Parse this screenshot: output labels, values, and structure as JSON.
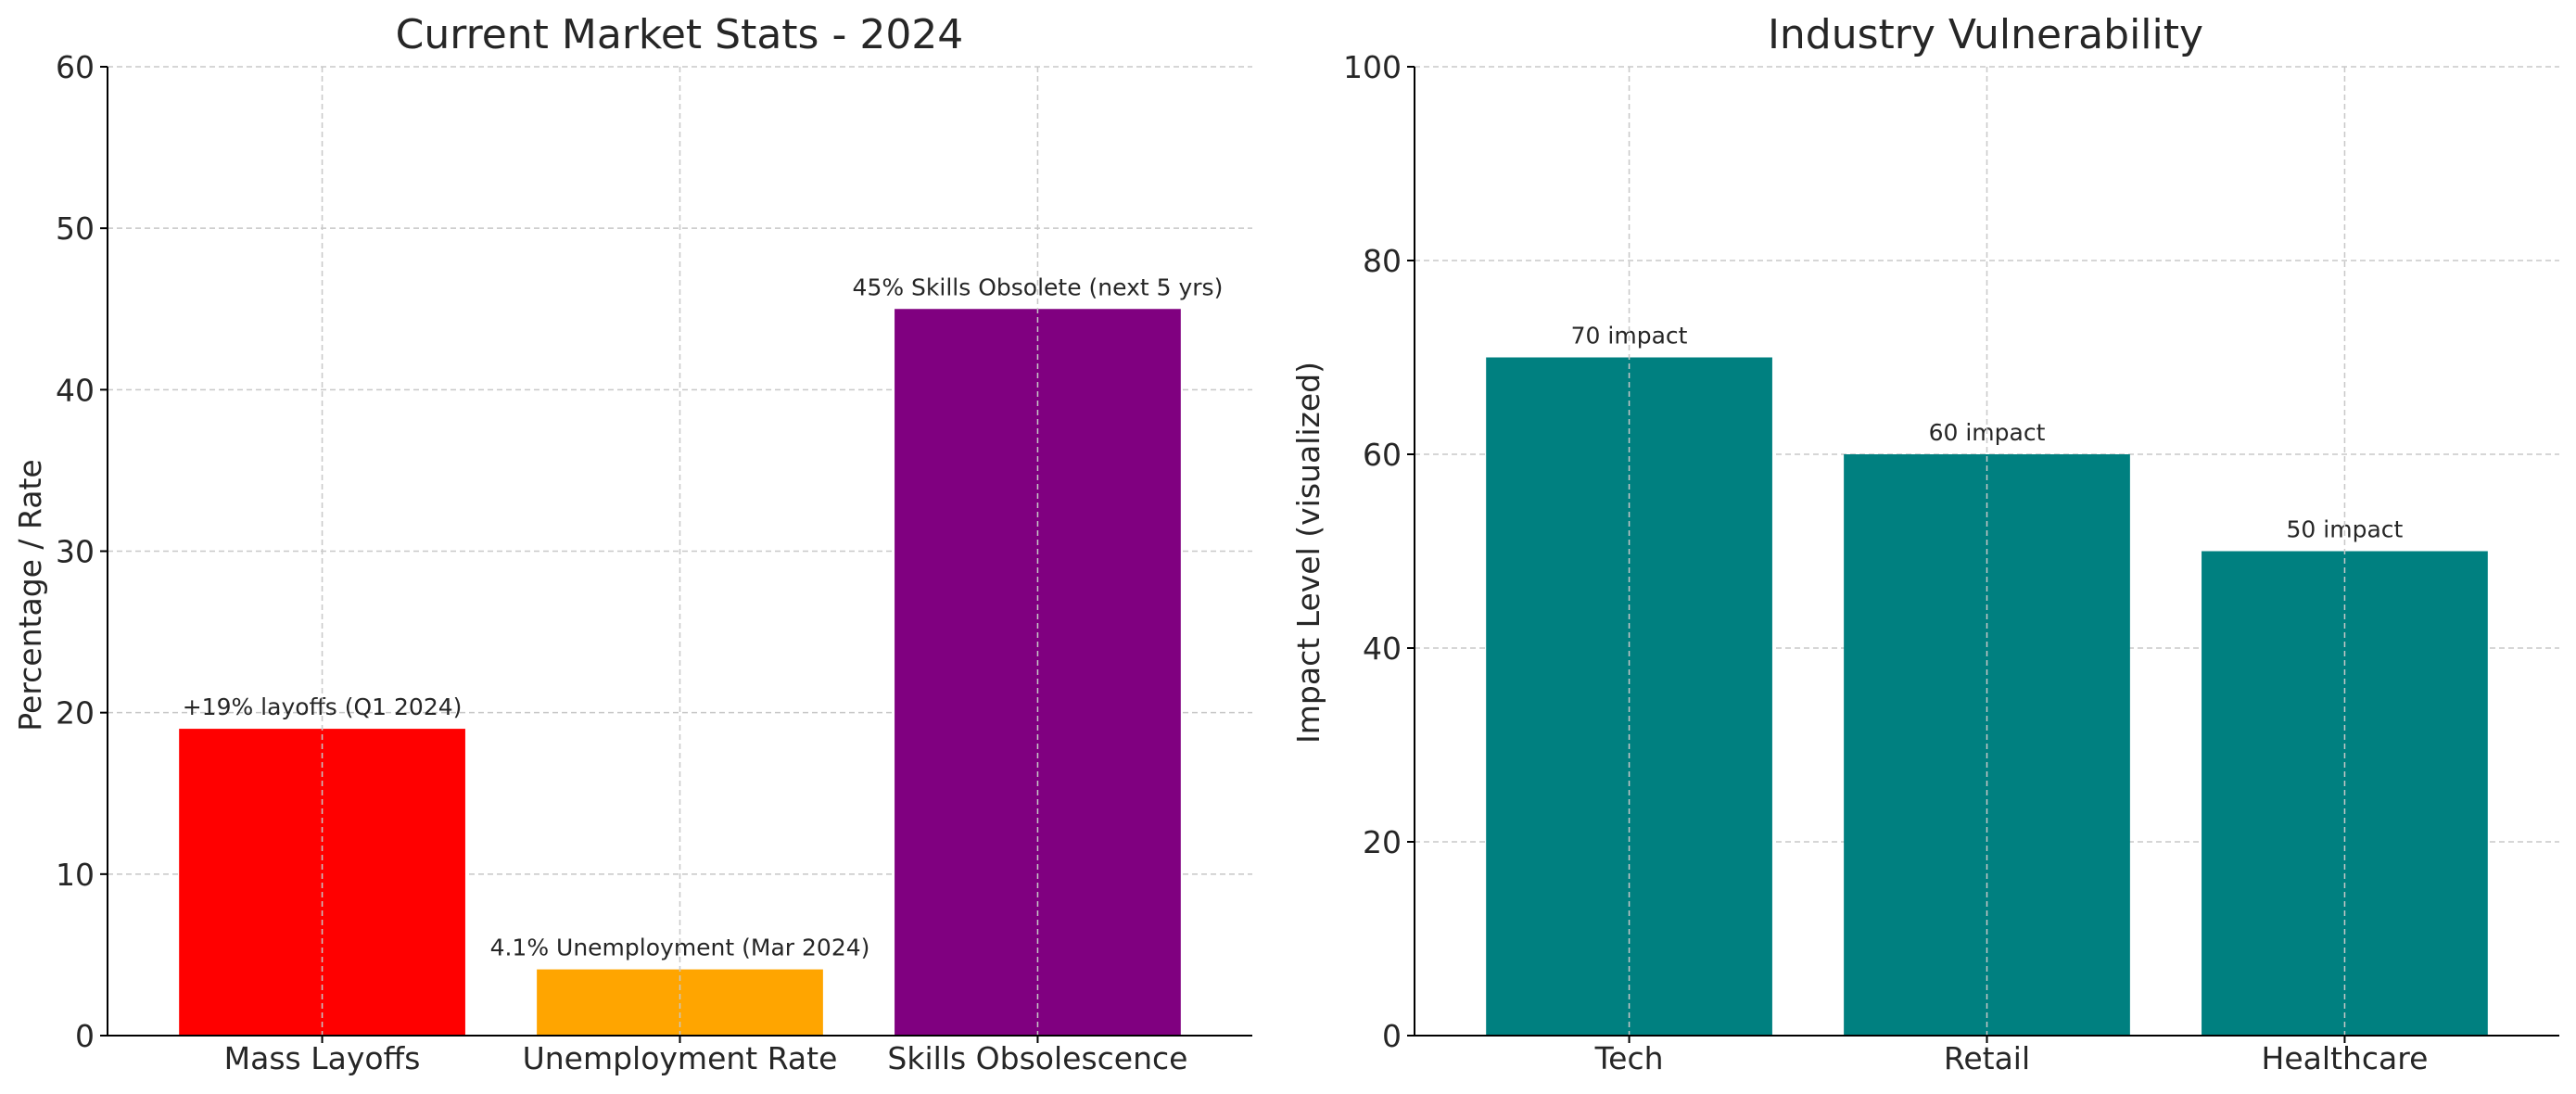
{
  "chart_data": [
    {
      "type": "bar",
      "title": "Current Market Stats - 2024",
      "xlabel": "",
      "ylabel": "Percentage / Rate",
      "categories": [
        "Mass Layoffs",
        "Unemployment Rate",
        "Skills Obsolescence"
      ],
      "values": [
        19,
        4.1,
        45
      ],
      "data_labels": [
        "+19% layoffs (Q1 2024)",
        "4.1% Unemployment (Mar 2024)",
        "45% Skills Obsolete (next 5 yrs)"
      ],
      "colors": [
        "#ff0000",
        "#ffa500",
        "#800080"
      ],
      "ylim": [
        0,
        60
      ],
      "yticks": [
        0,
        10,
        20,
        30,
        40,
        50,
        60
      ],
      "grid": true
    },
    {
      "type": "bar",
      "title": "Industry Vulnerability",
      "xlabel": "",
      "ylabel": "Impact Level (visualized)",
      "categories": [
        "Tech",
        "Retail",
        "Healthcare"
      ],
      "values": [
        70,
        60,
        50
      ],
      "data_labels": [
        "70 impact",
        "60 impact",
        "50 impact"
      ],
      "colors": [
        "#008080",
        "#008080",
        "#008080"
      ],
      "ylim": [
        0,
        100
      ],
      "yticks": [
        0,
        20,
        40,
        60,
        80,
        100
      ],
      "grid": true
    }
  ]
}
